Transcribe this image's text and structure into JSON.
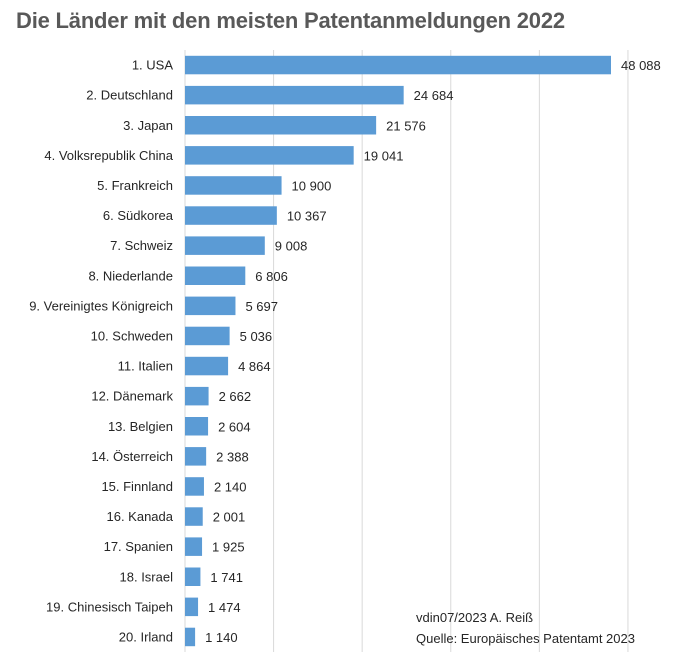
{
  "chart_data": {
    "type": "bar",
    "orientation": "horizontal",
    "title": "Die Länder mit den meisten Patentanmeldungen 2022",
    "categories": [
      "1. USA",
      "2. Deutschland",
      "3. Japan",
      "4. Volksrepublik China",
      "5. Frankreich",
      "6. Südkorea",
      "7. Schweiz",
      "8. Niederlande",
      "9. Vereinigtes Königreich",
      "10. Schweden",
      "11. Italien",
      "12. Dänemark",
      "13. Belgien",
      "14. Österreich",
      "15. Finnland",
      "16. Kanada",
      "17. Spanien",
      "18. Israel",
      "19. Chinesisch Taipeh",
      "20. Irland"
    ],
    "values": [
      48088,
      24684,
      21576,
      19041,
      10900,
      10367,
      9008,
      6806,
      5697,
      5036,
      4864,
      2662,
      2604,
      2388,
      2140,
      2001,
      1925,
      1741,
      1474,
      1140
    ],
    "value_labels": [
      "48 088",
      "24 684",
      "21 576",
      "19 041",
      "10 900",
      "10 367",
      "9 008",
      "6 806",
      "5 697",
      "5 036",
      "4 864",
      "2 662",
      "2 604",
      "2 388",
      "2 140",
      "2 001",
      "1 925",
      "1 741",
      "1 474",
      "1 140"
    ],
    "xlim": [
      0,
      50000
    ],
    "gridlines_x": [
      10000,
      20000,
      30000,
      40000,
      50000
    ],
    "grid": true,
    "bar_color": "#5B9BD5",
    "xlabel": "",
    "ylabel": ""
  },
  "source": {
    "line1": "vdin07/2023 A. Reiß",
    "line2": "Quelle: Europäisches Patentamt 2023"
  }
}
